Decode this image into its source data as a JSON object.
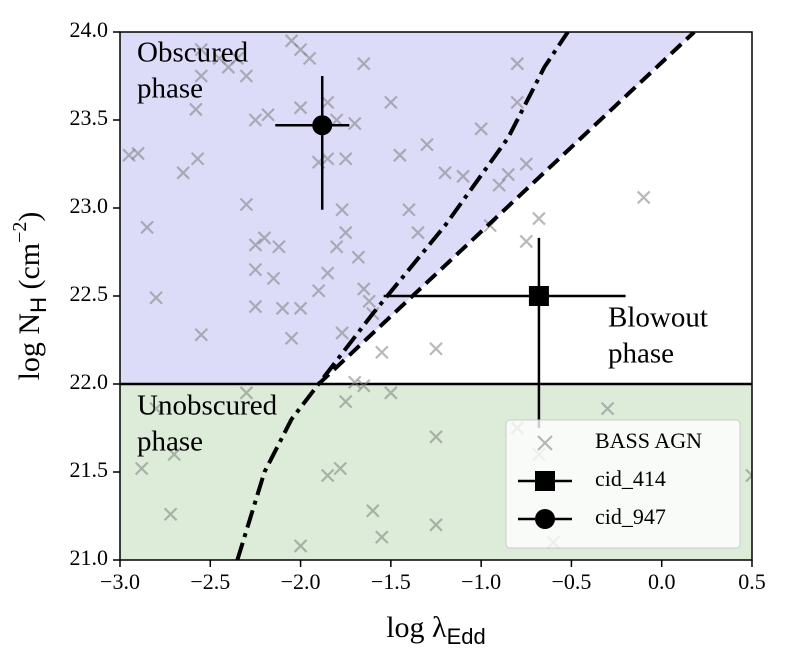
{
  "chart_data": {
    "type": "scatter",
    "x_label": [
      "log λ",
      "Edd"
    ],
    "y_label": [
      "log N",
      "H",
      " (cm",
      "−2",
      ")"
    ],
    "xlim": [
      -3.0,
      0.5
    ],
    "ylim": [
      21.0,
      24.0
    ],
    "xticks": [
      {
        "value": -3.0,
        "label": "−3.0"
      },
      {
        "value": -2.5,
        "label": "−2.5"
      },
      {
        "value": -2.0,
        "label": "−2.0"
      },
      {
        "value": -1.5,
        "label": "−1.5"
      },
      {
        "value": -1.0,
        "label": "−1.0"
      },
      {
        "value": -0.5,
        "label": "−0.5"
      },
      {
        "value": 0.0,
        "label": "0.0"
      },
      0.5
    ],
    "yticks": [
      {
        "value": 21.0,
        "label": "21.0"
      },
      21.5,
      {
        "value": 22.0,
        "label": "22.0"
      },
      22.5,
      {
        "value": 23.0,
        "label": "23.0"
      },
      23.5,
      {
        "value": 24.0,
        "label": "24.0"
      }
    ],
    "regions": [
      {
        "color": "#dcdcf8",
        "ylim": [
          22.0,
          24.0
        ]
      },
      {
        "color": "#dcecd8",
        "ylim": [
          21.0,
          22.0
        ]
      }
    ],
    "hline": 22.0,
    "lines": [
      {
        "style": "dashed",
        "x": [
          -1.9,
          0.18
        ],
        "y": [
          22.0,
          24.0
        ]
      },
      {
        "style": "dashdot",
        "x": [
          -2.35,
          -2.2,
          -2.05,
          -1.9,
          -1.6,
          -1.2,
          -0.85,
          -0.65,
          -0.52
        ],
        "y": [
          21.0,
          21.5,
          21.8,
          22.0,
          22.4,
          22.9,
          23.4,
          23.8,
          24.0
        ]
      }
    ],
    "annotations": [
      [
        "Obscured",
        "phase"
      ],
      [
        "Blowout",
        "phase"
      ],
      [
        "Unobscured",
        "phase"
      ]
    ],
    "legend": "lower right",
    "series": [
      {
        "name": "BASS AGN",
        "marker": "x",
        "color": "#808080",
        "x": [
          -2.95,
          -2.9,
          -2.85,
          -2.8,
          -2.55,
          -2.55,
          -2.58,
          -2.57,
          -2.45,
          -2.4,
          -2.35,
          -2.3,
          -2.25,
          -2.18,
          -2.05,
          -2.0,
          -1.95,
          -2.0,
          -1.85,
          -1.65,
          -1.8,
          -1.7,
          -1.75,
          -1.85,
          -1.9,
          -2.65,
          -2.3,
          -2.25,
          -2.2,
          -2.12,
          -2.15,
          -2.25,
          -2.25,
          -2.1,
          -2.0,
          -1.85,
          -1.8,
          -1.9,
          -1.77,
          -1.75,
          -1.65,
          -1.62,
          -1.68,
          -1.77,
          -1.6,
          -1.55,
          -1.5,
          -1.45,
          -1.4,
          -1.35,
          -1.3,
          -1.25,
          -1.2,
          -1.1,
          -1.0,
          -0.95,
          -0.9,
          -0.85,
          -0.8,
          -0.8,
          -0.75,
          -0.75,
          -0.68,
          -0.1,
          -2.05,
          -2.55,
          -2.8,
          -2.88,
          -2.72,
          -2.7,
          -2.0,
          -1.75,
          -1.85,
          -1.78,
          -1.6,
          -1.55,
          -1.7,
          -1.25,
          -1.25,
          -1.5,
          -0.8,
          -0.68,
          -0.6,
          -0.3,
          0.5,
          -1.65,
          -2.3
        ],
        "y": [
          23.3,
          23.31,
          22.89,
          22.49,
          23.9,
          23.75,
          23.56,
          23.28,
          23.85,
          23.8,
          23.85,
          23.75,
          23.5,
          23.53,
          23.95,
          23.9,
          23.85,
          23.57,
          23.6,
          23.82,
          23.5,
          23.48,
          23.28,
          23.28,
          23.26,
          23.2,
          23.02,
          22.79,
          22.83,
          22.78,
          22.6,
          22.65,
          22.44,
          22.43,
          22.43,
          22.63,
          22.78,
          22.53,
          22.99,
          22.86,
          22.54,
          22.47,
          22.72,
          22.29,
          22.4,
          22.18,
          23.6,
          23.3,
          22.99,
          22.86,
          23.36,
          22.2,
          23.2,
          23.18,
          23.45,
          22.9,
          23.13,
          23.19,
          23.6,
          23.82,
          23.25,
          22.81,
          22.94,
          23.06,
          22.26,
          22.28,
          21.86,
          21.52,
          21.26,
          21.6,
          21.08,
          21.9,
          21.48,
          21.52,
          21.28,
          21.13,
          22.01,
          21.7,
          21.2,
          21.95,
          21.75,
          21.6,
          21.1,
          21.86,
          21.48,
          21.99,
          21.95
        ]
      },
      {
        "name": "cid_414",
        "marker": "square",
        "color": "#000000",
        "x": [
          -0.68
        ],
        "y": [
          22.5
        ],
        "xerr_minus": [
          0.86
        ],
        "xerr_plus": [
          0.48
        ],
        "yerr_minus": [
          0.75
        ],
        "yerr_plus": [
          0.33
        ]
      },
      {
        "name": "cid_947",
        "marker": "circle",
        "color": "#000000",
        "x": [
          -1.88
        ],
        "y": [
          23.47
        ],
        "xerr_minus": [
          0.26
        ],
        "xerr_plus": [
          0.15
        ],
        "yerr_minus": [
          0.48
        ],
        "yerr_plus": [
          0.28
        ]
      }
    ]
  }
}
